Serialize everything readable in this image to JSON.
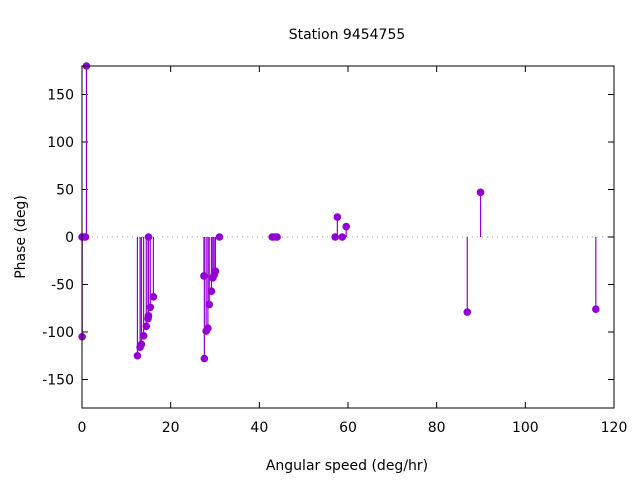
{
  "chart_data": {
    "type": "scatter",
    "style": "impulses-with-points",
    "title": "Station 9454755",
    "xlabel": "Angular speed (deg/hr)",
    "ylabel": "Phase (deg)",
    "xlim": [
      0,
      120
    ],
    "ylim": [
      -180,
      180
    ],
    "xticks": [
      0,
      20,
      40,
      60,
      80,
      100,
      120
    ],
    "yticks": [
      -150,
      -100,
      -50,
      0,
      50,
      100,
      150
    ],
    "grid": false,
    "zero_line": true,
    "color": "#9400d3",
    "points": [
      {
        "x": 0.0,
        "y": 0
      },
      {
        "x": 0.04,
        "y": -105
      },
      {
        "x": 0.5,
        "y": 0
      },
      {
        "x": 0.8,
        "y": 0
      },
      {
        "x": 1.0,
        "y": 180
      },
      {
        "x": 12.5,
        "y": -125
      },
      {
        "x": 13.1,
        "y": -116
      },
      {
        "x": 13.4,
        "y": -113
      },
      {
        "x": 13.9,
        "y": -104
      },
      {
        "x": 14.5,
        "y": -94
      },
      {
        "x": 14.9,
        "y": -86
      },
      {
        "x": 15.0,
        "y": -83
      },
      {
        "x": 15.0,
        "y": 0
      },
      {
        "x": 15.4,
        "y": -74
      },
      {
        "x": 16.1,
        "y": -63
      },
      {
        "x": 27.5,
        "y": -41
      },
      {
        "x": 27.6,
        "y": -128
      },
      {
        "x": 28.0,
        "y": -99
      },
      {
        "x": 28.4,
        "y": -96
      },
      {
        "x": 28.7,
        "y": -71
      },
      {
        "x": 29.2,
        "y": -57
      },
      {
        "x": 29.5,
        "y": -43
      },
      {
        "x": 29.8,
        "y": -40
      },
      {
        "x": 30.1,
        "y": -36
      },
      {
        "x": 31.0,
        "y": 0
      },
      {
        "x": 42.9,
        "y": 0
      },
      {
        "x": 43.5,
        "y": 0
      },
      {
        "x": 44.0,
        "y": 0
      },
      {
        "x": 57.1,
        "y": 0
      },
      {
        "x": 57.6,
        "y": 21
      },
      {
        "x": 58.7,
        "y": 0
      },
      {
        "x": 59.6,
        "y": 11
      },
      {
        "x": 86.9,
        "y": -79
      },
      {
        "x": 89.9,
        "y": 47
      },
      {
        "x": 115.9,
        "y": -76
      }
    ]
  }
}
